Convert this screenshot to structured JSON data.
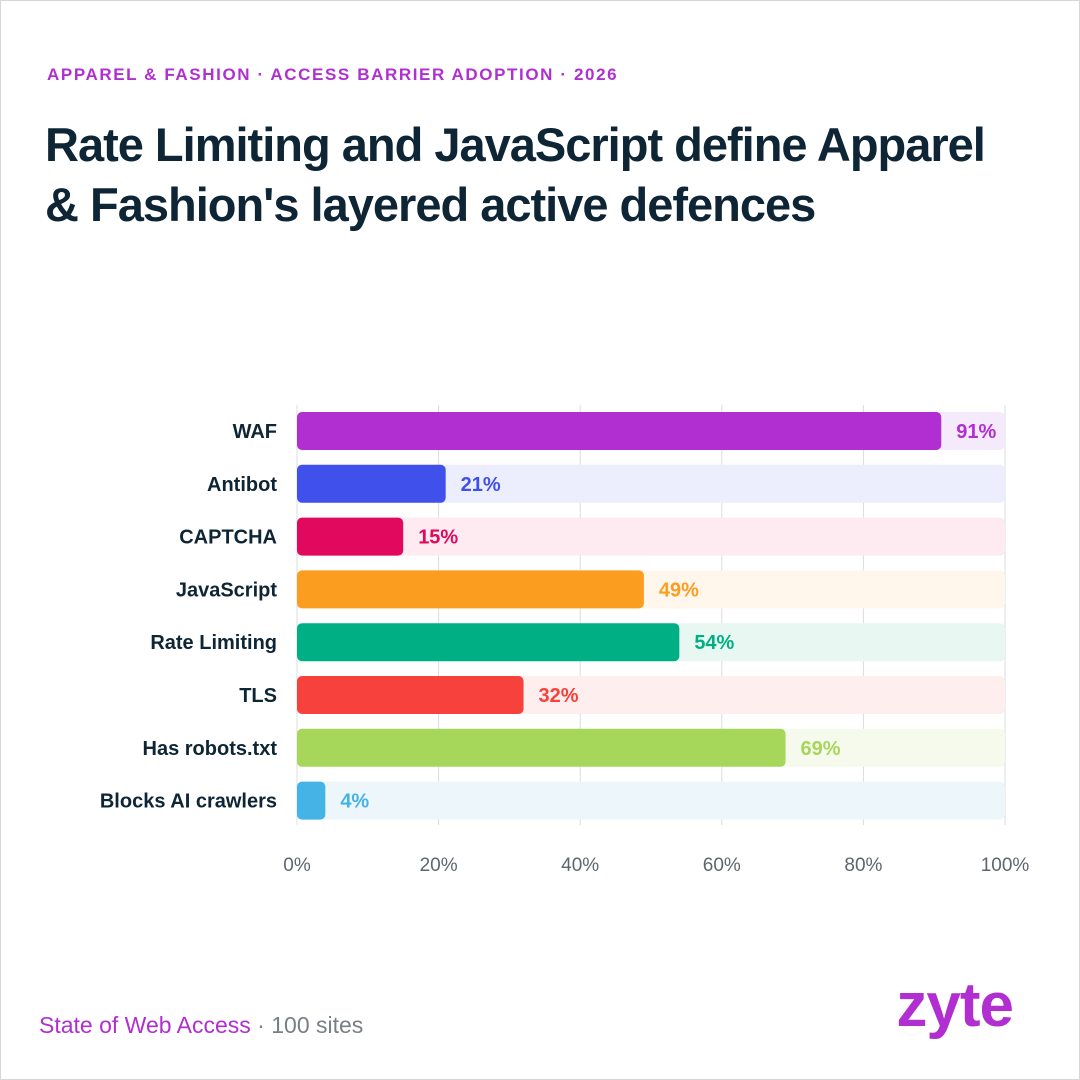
{
  "header": {
    "eyebrow": "APPAREL & FASHION · ACCESS BARRIER ADOPTION · 2026",
    "title": "Rate Limiting and JavaScript define Apparel & Fashion's layered active defences"
  },
  "footer": {
    "source": "State of Web Access",
    "separator": " · ",
    "sample": "100 sites",
    "logo": "zyte"
  },
  "colors": {
    "accent": "#b12fd1",
    "title": "#0d2535",
    "muted": "#7a7f86"
  },
  "chart_data": {
    "type": "bar",
    "orientation": "horizontal",
    "categories": [
      "WAF",
      "Antibot",
      "CAPTCHA",
      "JavaScript",
      "Rate Limiting",
      "TLS",
      "Has robots.txt",
      "Blocks AI crawlers"
    ],
    "values": [
      91,
      21,
      15,
      49,
      54,
      32,
      69,
      4
    ],
    "value_labels": [
      "91%",
      "21%",
      "15%",
      "49%",
      "54%",
      "32%",
      "69%",
      "4%"
    ],
    "bar_colors": [
      "#b12fd1",
      "#3f51ea",
      "#e0095e",
      "#fb9d1f",
      "#00b085",
      "#f7413c",
      "#a6d65a",
      "#44b3e6"
    ],
    "track_colors": [
      "#f5eafb",
      "#eceefd",
      "#fdebf1",
      "#fff6ec",
      "#e8f7f2",
      "#feeeed",
      "#f5faed",
      "#ecf6fb"
    ],
    "xlim": [
      0,
      100
    ],
    "x_ticks": [
      0,
      20,
      40,
      60,
      80,
      100
    ],
    "x_tick_labels": [
      "0%",
      "20%",
      "40%",
      "60%",
      "80%",
      "100%"
    ],
    "grid": true,
    "xlabel": "",
    "ylabel": ""
  }
}
